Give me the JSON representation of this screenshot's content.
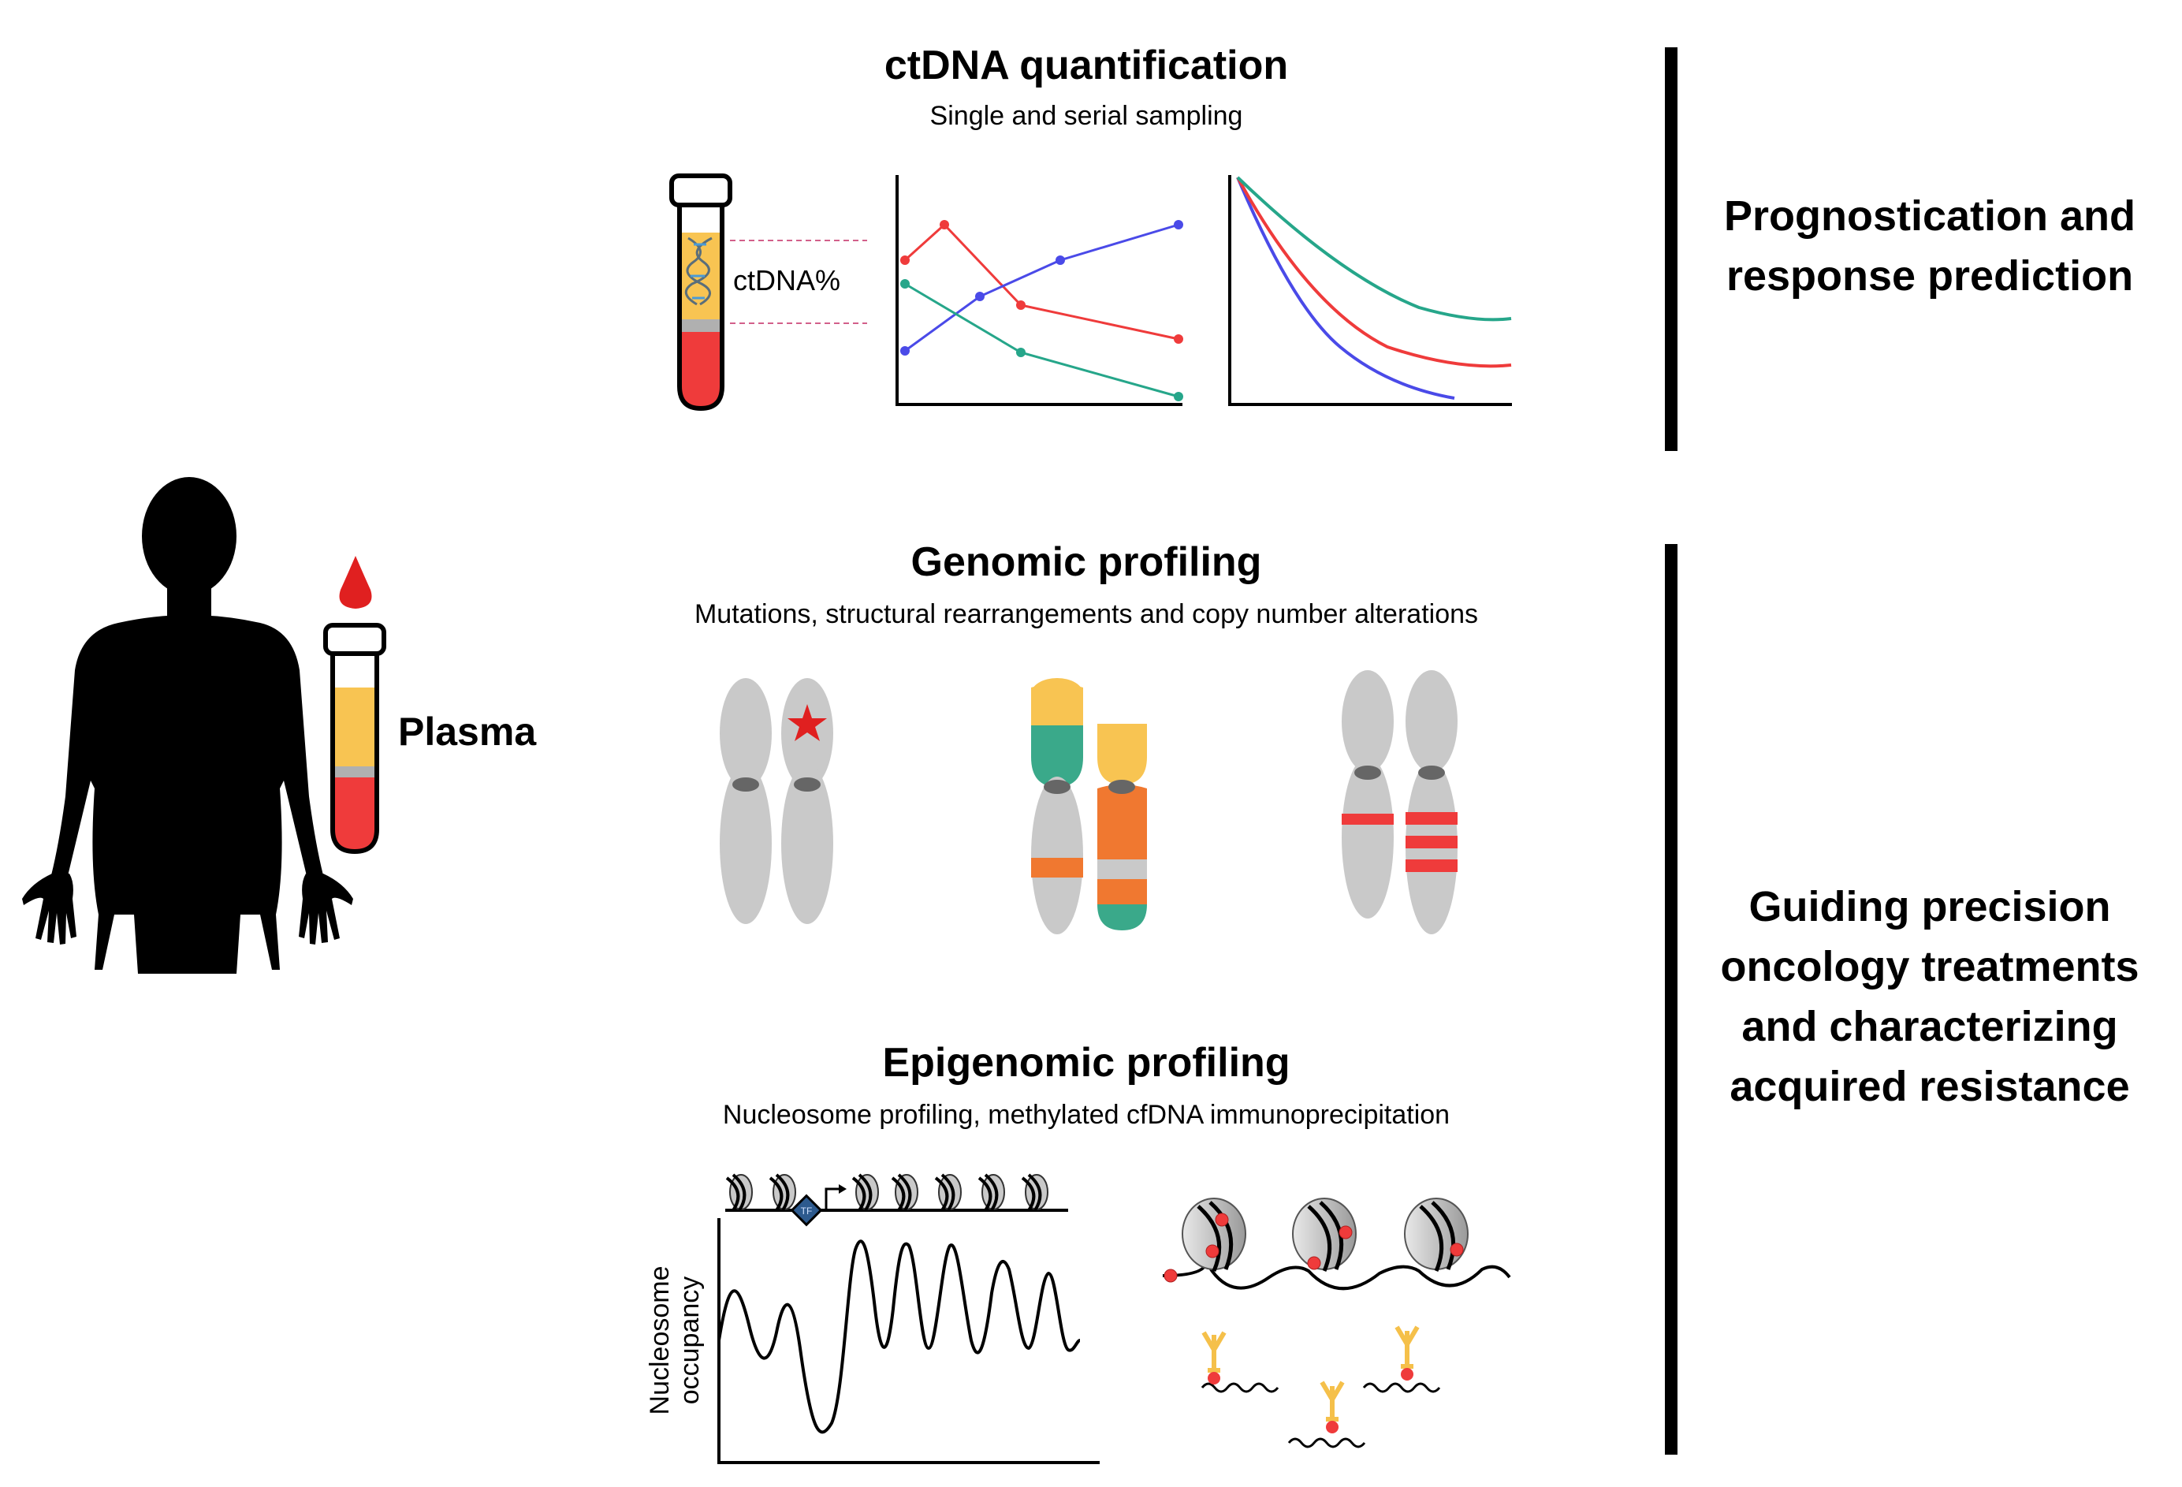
{
  "sections": {
    "ctdna": {
      "title": "ctDNA quantification",
      "subtitle": "Single and serial sampling",
      "tube_label": "ctDNA%"
    },
    "genomic": {
      "title": "Genomic profiling",
      "subtitle": "Mutations, structural rearrangements and copy number alterations"
    },
    "epigenomic": {
      "title": "Epigenomic profiling",
      "subtitle": "Nucleosome profiling, methylated cfDNA immunoprecipitation",
      "ylabel_line1": "Nucleosome",
      "ylabel_line2": "occupancy",
      "tf_label": "TF"
    }
  },
  "left": {
    "plasma_label": "Plasma"
  },
  "outcomes": {
    "top": [
      "Prognostication and",
      "response prediction"
    ],
    "bottom": [
      "Guiding precision",
      "oncology treatments",
      "and characterizing",
      "acquired resistance"
    ]
  },
  "colors": {
    "red": "#ef3b3b",
    "blue": "#4a4ae8",
    "teal": "#26a68a",
    "plasma_yellow": "#f8c452",
    "blood_red": "#ef3b3b",
    "chrom_grey": "#c9c9c9",
    "centromere": "#666666",
    "green": "#3aa98a",
    "orange": "#f07830",
    "antibody": "#f5c04a",
    "tf_blue": "#2d5a8e"
  }
}
